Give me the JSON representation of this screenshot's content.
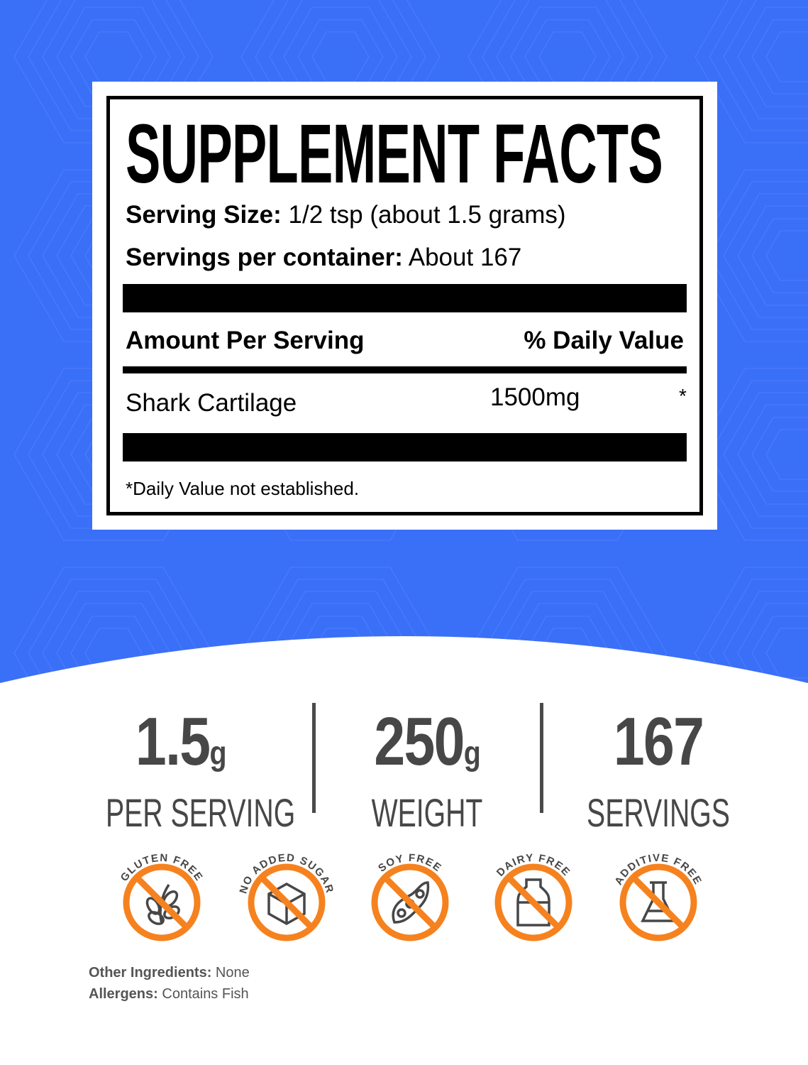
{
  "colors": {
    "background": "#3a6ff8",
    "accent": "#f5821f",
    "stat_text": "#474747"
  },
  "facts": {
    "title": "SUPPLEMENT FACTS",
    "serving_size_label": "Serving Size:",
    "serving_size_value": "1/2 tsp (about 1.5 grams)",
    "servings_label": "Servings per container:",
    "servings_value": "About 167",
    "amount_header": "Amount Per Serving",
    "dv_header": "% Daily Value",
    "ingredients": [
      {
        "name": "Shark Cartilage",
        "amount": "1500mg",
        "dv": "*"
      }
    ],
    "footnote": "*Daily Value not established."
  },
  "stats": [
    {
      "value": "1.5",
      "unit": "g",
      "label": "PER SERVING"
    },
    {
      "value": "250",
      "unit": "g",
      "label": "WEIGHT"
    },
    {
      "value": "167",
      "unit": "",
      "label": "SERVINGS"
    }
  ],
  "badges": [
    {
      "label": "GLUTEN FREE",
      "icon": "wheat-icon"
    },
    {
      "label": "NO ADDED SUGAR",
      "icon": "sugar-cube-icon"
    },
    {
      "label": "SOY FREE",
      "icon": "soybean-icon"
    },
    {
      "label": "DAIRY FREE",
      "icon": "milk-bottle-icon"
    },
    {
      "label": "ADDITIVE FREE",
      "icon": "flask-icon"
    }
  ],
  "other_ingredients": {
    "label": "Other Ingredients:",
    "value": "None"
  },
  "allergens": {
    "label": "Allergens:",
    "value": "Contains Fish"
  }
}
